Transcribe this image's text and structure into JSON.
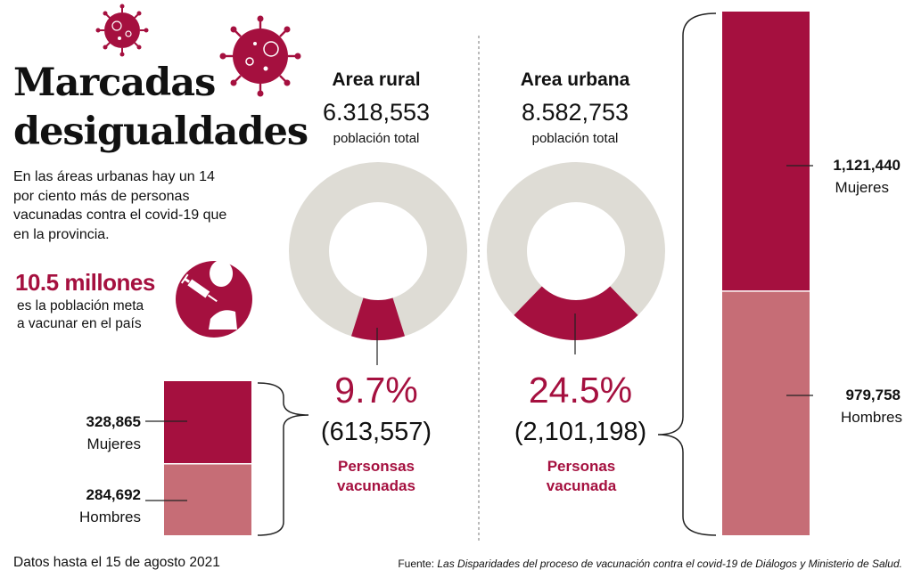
{
  "header": {
    "title_line1": "Marcadas",
    "title_line2": "desigualdades",
    "intro": "En las áreas urbanas hay un 14 por ciento más de personas vacunadas contra el covid-19 que en la provincia.",
    "goal_value": "10.5 millones",
    "goal_text_line1": "es la población meta",
    "goal_text_line2": "a vacunar en el país"
  },
  "colors": {
    "accent": "#a5103f",
    "accent_light": "#c66d76",
    "ring_bg": "#dedcd5"
  },
  "icons": [
    "virus-icon",
    "virus-icon",
    "vaccine-person-icon"
  ],
  "chart_data": [
    {
      "type": "pie",
      "title": "Area rural",
      "total_value": "6.318,553",
      "total_label": "población total",
      "share": 0.097,
      "pct_label": "9.7%",
      "count_label": "(613,557)",
      "caption": "Personsas vacunadas"
    },
    {
      "type": "pie",
      "title": "Area urbana",
      "total_value": "8.582,753",
      "total_label": "población total",
      "share": 0.245,
      "pct_label": "24.5%",
      "count_label": "(2,101,198)",
      "caption": "Personas vacunada"
    },
    {
      "type": "bar",
      "categories": [
        "Mujeres",
        "Hombres"
      ],
      "values": [
        328865,
        284692
      ],
      "value_labels": [
        "328,865",
        "284,692"
      ]
    },
    {
      "type": "bar",
      "categories": [
        "Mujeres",
        "Hombres"
      ],
      "values": [
        1121440,
        979758
      ],
      "value_labels": [
        "1,121,440",
        "979,758"
      ]
    }
  ],
  "footer": {
    "date_note": "Datos hasta el 15 de agosto 2021",
    "source_prefix": "Fuente: ",
    "source_text": "Las Disparidades del proceso de vacunación contra el covid-19 de Diálogos y Ministerio de Salud."
  }
}
